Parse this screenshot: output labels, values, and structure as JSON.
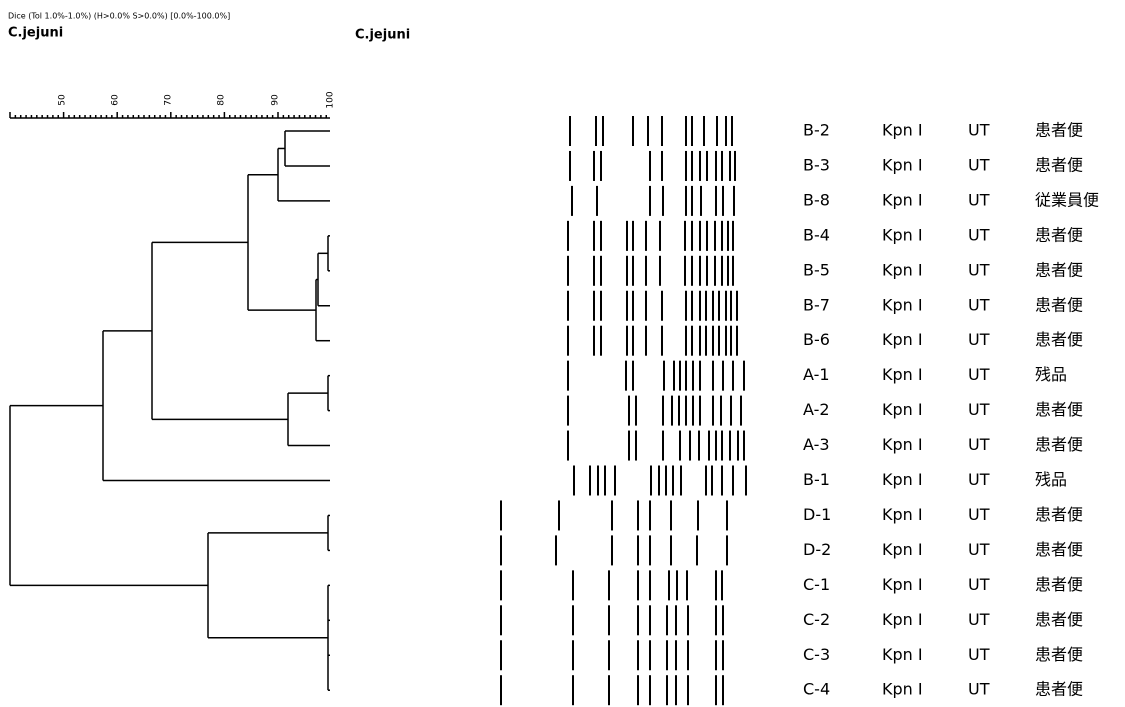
{
  "header": {
    "method": "Dice (Tol 1.0%-1.0%) (H>0.0% S>0.0%) [0.0%-100.0%]",
    "left_title": "C.jejuni",
    "right_title": "C.jejuni"
  },
  "scale": {
    "ticks": [
      "50",
      "60",
      "70",
      "80",
      "90",
      "100"
    ]
  },
  "rows": [
    [
      "B-2",
      "Kpn I",
      "UT",
      "患者便"
    ],
    [
      "B-3",
      "Kpn I",
      "UT",
      "患者便"
    ],
    [
      "B-8",
      "Kpn I",
      "UT",
      "従業員便"
    ],
    [
      "B-4",
      "Kpn I",
      "UT",
      "患者便"
    ],
    [
      "B-5",
      "Kpn I",
      "UT",
      "患者便"
    ],
    [
      "B-7",
      "Kpn I",
      "UT",
      "患者便"
    ],
    [
      "B-6",
      "Kpn I",
      "UT",
      "患者便"
    ],
    [
      "A-1",
      "Kpn I",
      "UT",
      "残品"
    ],
    [
      "A-2",
      "Kpn I",
      "UT",
      "患者便"
    ],
    [
      "A-3",
      "Kpn I",
      "UT",
      "患者便"
    ],
    [
      "B-1",
      "Kpn I",
      "UT",
      "残品"
    ],
    [
      "D-1",
      "Kpn I",
      "UT",
      "患者便"
    ],
    [
      "D-2",
      "Kpn I",
      "UT",
      "患者便"
    ],
    [
      "C-1",
      "Kpn I",
      "UT",
      "患者便"
    ],
    [
      "C-2",
      "Kpn I",
      "UT",
      "患者便"
    ],
    [
      "C-3",
      "Kpn I",
      "UT",
      "患者便"
    ],
    [
      "C-4",
      "Kpn I",
      "UT",
      "患者便"
    ]
  ]
}
